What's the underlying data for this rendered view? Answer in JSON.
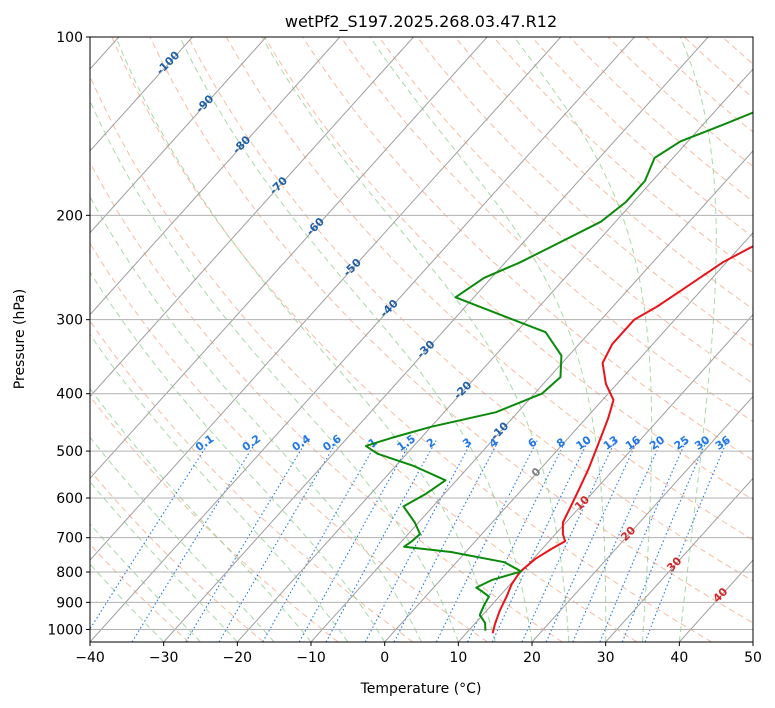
{
  "chart_data": {
    "type": "line",
    "title": "wetPf2_S197.2025.268.03.47.R12",
    "xlabel": "Temperature (°C)",
    "ylabel": "Pressure (hPa)",
    "xlim": [
      -40,
      50
    ],
    "ylim": [
      1050,
      100
    ],
    "y_scale": "log",
    "x_ticks": [
      -40,
      -30,
      -20,
      -10,
      0,
      10,
      20,
      30,
      40,
      50
    ],
    "x_tick_labels": [
      "−40",
      "−30",
      "−20",
      "−10",
      "0",
      "10",
      "20",
      "30",
      "40",
      "50"
    ],
    "y_ticks": [
      100,
      200,
      300,
      400,
      500,
      600,
      700,
      800,
      900,
      1000
    ],
    "y_tick_labels": [
      "100",
      "200",
      "300",
      "400",
      "500",
      "600",
      "700",
      "800",
      "900",
      "1000"
    ],
    "grid": true,
    "colors": {
      "temperature": "#e8141a",
      "dewpoint": "#0a8a0a",
      "isotherm": "#9e9e9e",
      "dry_adiabat": "#f4a582",
      "moist_adiabat": "#91cf91",
      "mixing_ratio": "#1f77e8",
      "isotherm_label": "#1f5fa8",
      "dry_adiabat_label": "#d62728",
      "grid": "#b0b0b0"
    },
    "series": [
      {
        "role": "temperature",
        "points": [
          [
            13.6,
            1015
          ],
          [
            12.8,
            980
          ],
          [
            11.8,
            930
          ],
          [
            11.0,
            880
          ],
          [
            10.2,
            840
          ],
          [
            9.8,
            800
          ],
          [
            10.3,
            760
          ],
          [
            11.3,
            730
          ],
          [
            12.2,
            710
          ],
          [
            11.0,
            690
          ],
          [
            9.6,
            660
          ],
          [
            8.7,
            620
          ],
          [
            7.6,
            575
          ],
          [
            6.5,
            535
          ],
          [
            5.3,
            500
          ],
          [
            4.2,
            470
          ],
          [
            3.0,
            440
          ],
          [
            1.5,
            410
          ],
          [
            -1.5,
            385
          ],
          [
            -4.5,
            355
          ],
          [
            -5.5,
            330
          ],
          [
            -5.5,
            300
          ],
          [
            -4.0,
            285
          ],
          [
            -2.5,
            265
          ],
          [
            -0.5,
            240
          ],
          [
            2.5,
            220
          ],
          [
            5.5,
            200
          ],
          [
            7.5,
            185
          ],
          [
            9.5,
            170
          ],
          [
            11.8,
            155
          ],
          [
            13.3,
            145
          ],
          [
            13.8,
            135
          ],
          [
            14.2,
            125
          ],
          [
            14.7,
            115
          ],
          [
            15.4,
            108
          ],
          [
            16.0,
            100
          ]
        ]
      },
      {
        "role": "dewpoint",
        "points": [
          [
            12.3,
            1005
          ],
          [
            11.3,
            975
          ],
          [
            9.6,
            945
          ],
          [
            9.0,
            910
          ],
          [
            8.6,
            880
          ],
          [
            6.8,
            860
          ],
          [
            5.8,
            850
          ],
          [
            7.0,
            825
          ],
          [
            9.9,
            798
          ],
          [
            6.5,
            770
          ],
          [
            -2.0,
            740
          ],
          [
            -9.0,
            725
          ],
          [
            -8.6,
            710
          ],
          [
            -8.4,
            690
          ],
          [
            -10.5,
            660
          ],
          [
            -14.0,
            620
          ],
          [
            -12.5,
            590
          ],
          [
            -11.5,
            560
          ],
          [
            -17.5,
            530
          ],
          [
            -24.0,
            505
          ],
          [
            -26.5,
            490
          ],
          [
            -24.0,
            475
          ],
          [
            -20.0,
            455
          ],
          [
            -13.0,
            430
          ],
          [
            -9.0,
            400
          ],
          [
            -8.5,
            375
          ],
          [
            -11.0,
            345
          ],
          [
            -16.0,
            315
          ],
          [
            -24.0,
            295
          ],
          [
            -32.5,
            275
          ],
          [
            -31.0,
            255
          ],
          [
            -28.0,
            240
          ],
          [
            -25.5,
            225
          ],
          [
            -22.0,
            205
          ],
          [
            -21.0,
            190
          ],
          [
            -21.0,
            175
          ],
          [
            -22.5,
            160
          ],
          [
            -21.0,
            150
          ],
          [
            -17.0,
            140
          ],
          [
            -13.0,
            130
          ],
          [
            -10.0,
            120
          ],
          [
            -7.5,
            110
          ],
          [
            -5.5,
            100
          ]
        ]
      }
    ],
    "isotherm_labels": [
      "-100",
      "-90",
      "-80",
      "-70",
      "-60",
      "-50",
      "-40",
      "-30",
      "-20",
      "-10"
    ],
    "dry_adiabat_labels": [
      "0",
      "10",
      "20",
      "30",
      "40"
    ],
    "mixing_ratio_labels": [
      "0.1",
      "0.2",
      "0.4",
      "0.6",
      "1",
      "1.5",
      "2",
      "3",
      "4",
      "6",
      "8",
      "10",
      "13",
      "16",
      "20",
      "25",
      "30",
      "36"
    ]
  }
}
